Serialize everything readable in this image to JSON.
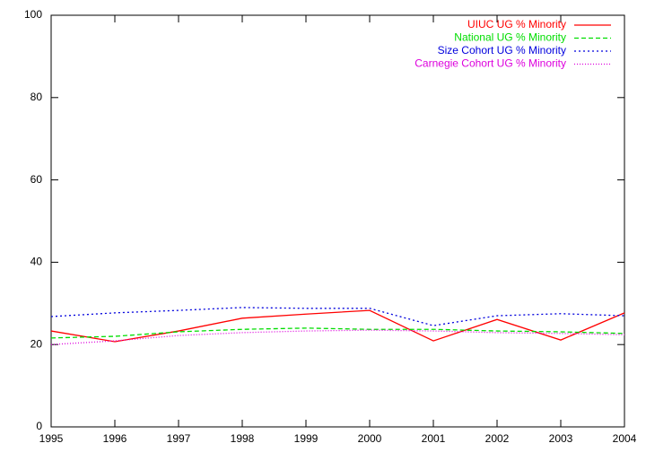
{
  "chart_data": {
    "type": "line",
    "x": [
      1995,
      1996,
      1997,
      1998,
      1999,
      2000,
      2001,
      2002,
      2003,
      2004
    ],
    "series": [
      {
        "name": "UIUC UG % Minority",
        "color": "#ff0000",
        "dash": "solid",
        "values": [
          23.3,
          20.7,
          23.3,
          26.4,
          27.4,
          28.3,
          20.9,
          26.1,
          21.1,
          27.7
        ]
      },
      {
        "name": "National UG % Minority",
        "color": "#00dd00",
        "dash": "dashed",
        "values": [
          21.6,
          22.0,
          23.1,
          23.7,
          24.0,
          23.7,
          23.7,
          23.3,
          23.1,
          22.7
        ]
      },
      {
        "name": "Size Cohort UG % Minority",
        "color": "#0000dd",
        "dash": "dotted",
        "values": [
          26.8,
          27.7,
          28.3,
          29.0,
          28.8,
          28.8,
          24.6,
          27.0,
          27.5,
          27.0
        ]
      },
      {
        "name": "Carnegie Cohort UG % Minority",
        "color": "#dd00dd",
        "dash": "fine-dotted",
        "values": [
          20.0,
          20.9,
          22.2,
          22.9,
          23.3,
          23.5,
          23.3,
          22.9,
          22.7,
          22.4
        ]
      }
    ],
    "xlim": [
      1995,
      2004
    ],
    "xticks": [
      1995,
      1996,
      1997,
      1998,
      1999,
      2000,
      2001,
      2002,
      2003,
      2004
    ],
    "ylim": [
      0,
      100
    ],
    "yticks": [
      0,
      20,
      40,
      60,
      80,
      100
    ],
    "grid": false,
    "legend": "top-right"
  }
}
